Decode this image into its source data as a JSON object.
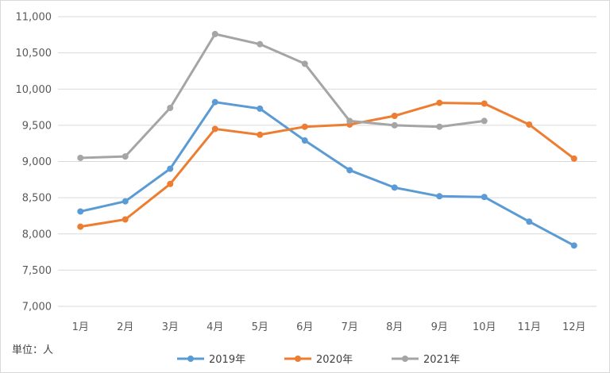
{
  "chart_data": {
    "type": "line",
    "categories": [
      "1月",
      "2月",
      "3月",
      "4月",
      "5月",
      "6月",
      "7月",
      "8月",
      "9月",
      "10月",
      "11月",
      "12月"
    ],
    "series": [
      {
        "name": "2019年",
        "color": "#5b9bd5",
        "values": [
          8310,
          8450,
          8900,
          9820,
          9730,
          9290,
          8880,
          8640,
          8520,
          8510,
          8170,
          7840
        ]
      },
      {
        "name": "2020年",
        "color": "#ed7d31",
        "values": [
          8100,
          8200,
          8690,
          9450,
          9370,
          9480,
          9510,
          9630,
          9810,
          9800,
          9510,
          9040
        ]
      },
      {
        "name": "2021年",
        "color": "#a5a5a5",
        "values": [
          9050,
          9070,
          9740,
          10760,
          10620,
          10350,
          9560,
          9500,
          9480,
          9560,
          null,
          null
        ]
      }
    ],
    "ylim": [
      7000,
      11000
    ],
    "yticks": [
      "7,000",
      "7,500",
      "8,000",
      "8,500",
      "9,000",
      "9,500",
      "10,000",
      "10,500",
      "11,000"
    ],
    "ytick_values": [
      7000,
      7500,
      8000,
      8500,
      9000,
      9500,
      10000,
      10500,
      11000
    ],
    "unit_label": "単位：人",
    "grid": true,
    "legend_position": "bottom"
  }
}
